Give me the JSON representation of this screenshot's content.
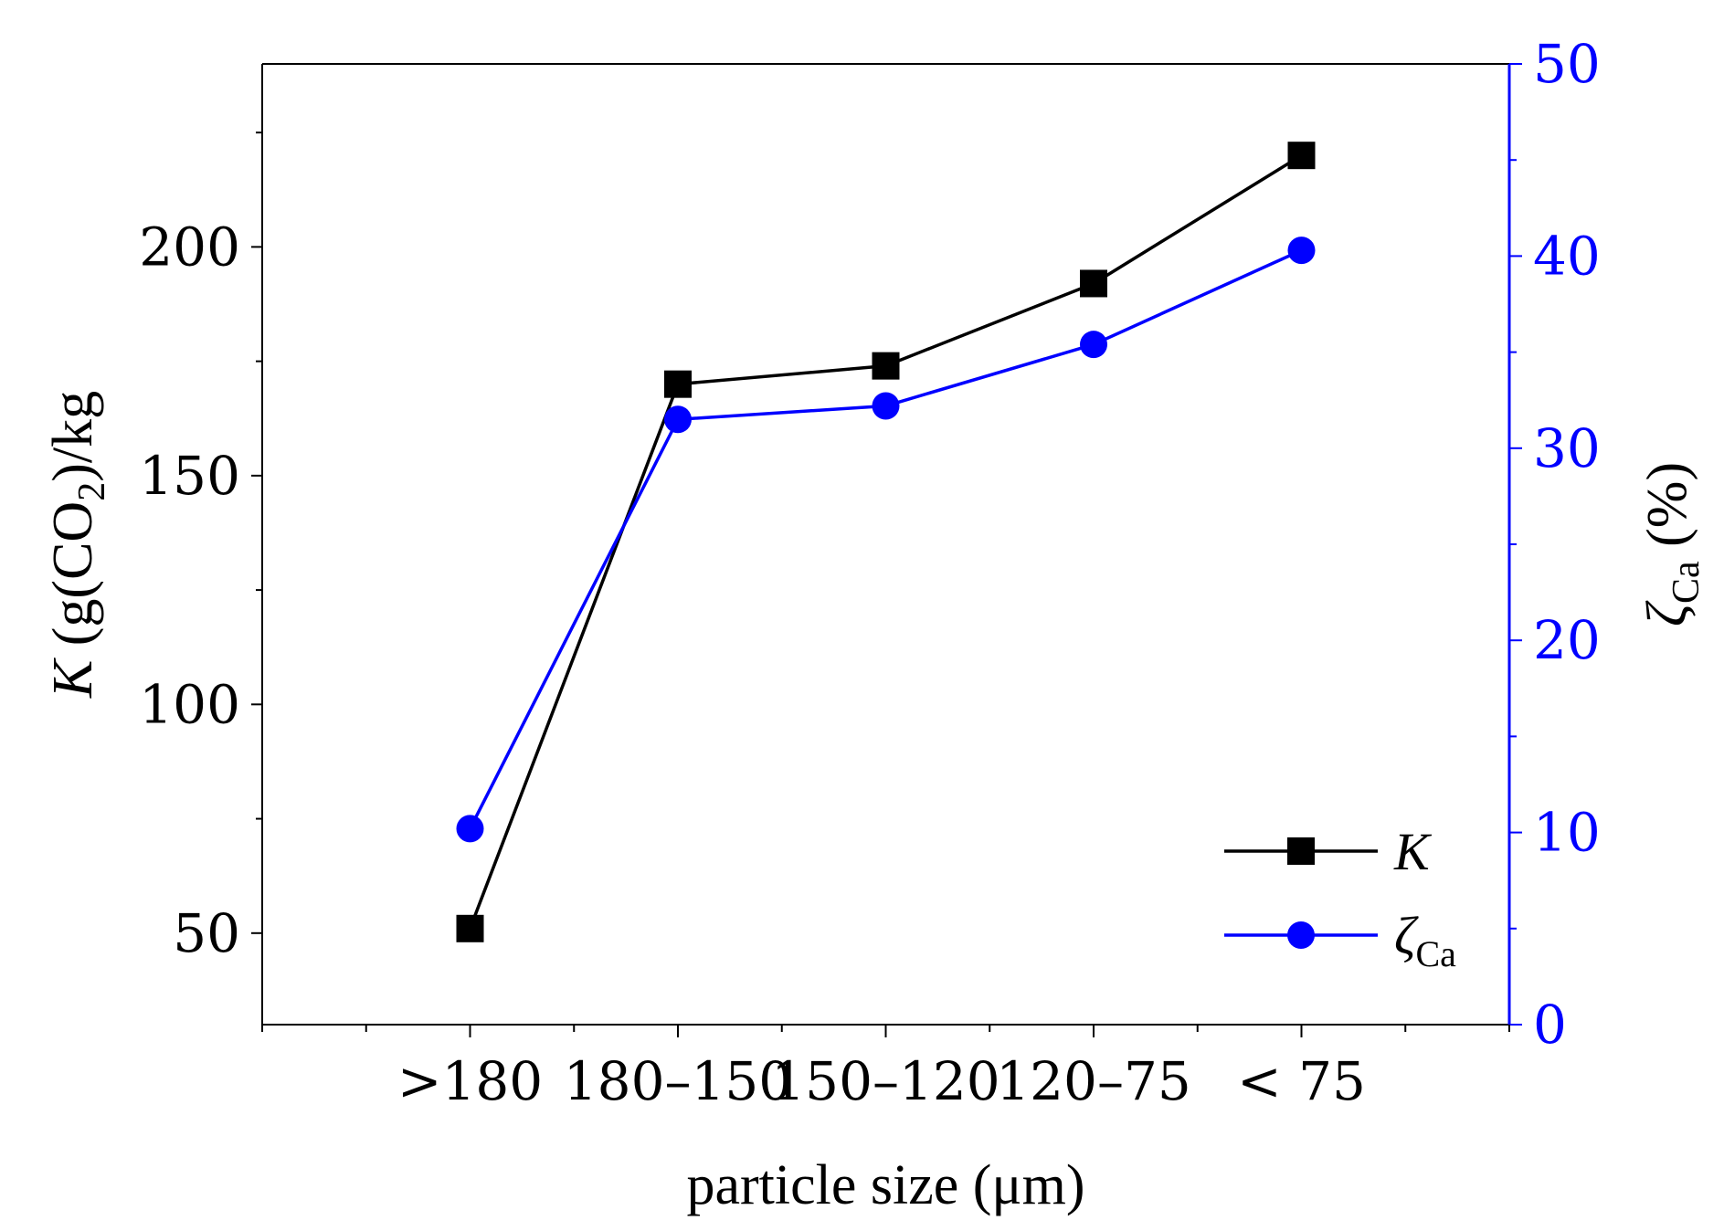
{
  "chart_data": {
    "type": "line",
    "categories": [
      ">180",
      "180–150",
      "150–120",
      "120–75",
      "< 75"
    ],
    "xlabel": "particle size (μm)",
    "ylabel_left": {
      "symbol": "K",
      "text_pre": " (g(CO",
      "sub": "2",
      "text_post": ")/kg"
    },
    "ylabel_right": {
      "symbol": "ζ",
      "sub": "Ca",
      "text": " (%)"
    },
    "ylim_left": [
      30,
      240
    ],
    "yticks_left": [
      50,
      100,
      150,
      200
    ],
    "ylim_right": [
      0,
      50
    ],
    "yticks_right": [
      0,
      10,
      20,
      30,
      40,
      50
    ],
    "series": [
      {
        "name": "K",
        "legend_symbol": "K",
        "legend_sub": "",
        "axis": "left",
        "marker": "square",
        "color": "#000000",
        "values": [
          51,
          170,
          174,
          192,
          220
        ]
      },
      {
        "name": "ζCa",
        "legend_symbol": "ζ",
        "legend_sub": "Ca",
        "axis": "right",
        "marker": "circle",
        "color": "#0000ff",
        "values": [
          10.2,
          31.5,
          32.2,
          35.4,
          40.3
        ]
      }
    ],
    "legend_position": "bottom-right",
    "colors": {
      "left_axis": "#000000",
      "right_axis": "#0000ff"
    }
  }
}
